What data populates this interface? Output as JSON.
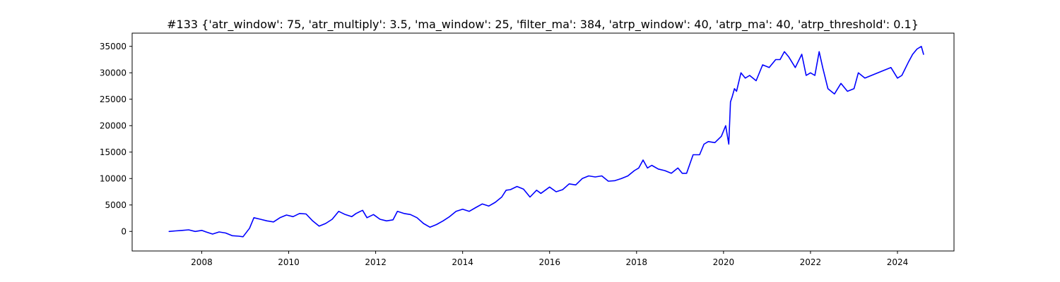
{
  "chart_data": {
    "type": "line",
    "title": "#133 {'atr_window': 75, 'atr_multiply': 3.5, 'ma_window': 25, 'filter_ma': 384, 'atrp_window': 40, 'atrp_ma': 40, 'atrp_threshold': 0.1}",
    "xlabel": "",
    "ylabel": "",
    "xlim": [
      2006.4,
      2025.3
    ],
    "ylim": [
      -3700,
      37500
    ],
    "xticks": [
      2008,
      2010,
      2012,
      2014,
      2016,
      2018,
      2020,
      2022,
      2024
    ],
    "yticks": [
      0,
      5000,
      10000,
      15000,
      20000,
      25000,
      30000,
      35000
    ],
    "grid": false,
    "legend": "none",
    "series": [
      {
        "color": "#0000ff",
        "x": [
          2007.25,
          2007.4,
          2007.55,
          2007.7,
          2007.85,
          2008.0,
          2008.1,
          2008.25,
          2008.4,
          2008.55,
          2008.7,
          2008.85,
          2008.95,
          2009.1,
          2009.2,
          2009.35,
          2009.5,
          2009.65,
          2009.8,
          2009.95,
          2010.1,
          2010.25,
          2010.4,
          2010.55,
          2010.7,
          2010.85,
          2011.0,
          2011.15,
          2011.3,
          2011.45,
          2011.55,
          2011.7,
          2011.8,
          2011.95,
          2012.1,
          2012.25,
          2012.4,
          2012.5,
          2012.65,
          2012.8,
          2012.95,
          2013.1,
          2013.25,
          2013.4,
          2013.55,
          2013.7,
          2013.85,
          2014.0,
          2014.15,
          2014.3,
          2014.45,
          2014.6,
          2014.75,
          2014.9,
          2015.0,
          2015.1,
          2015.25,
          2015.4,
          2015.55,
          2015.7,
          2015.8,
          2015.9,
          2016.0,
          2016.15,
          2016.3,
          2016.45,
          2016.6,
          2016.75,
          2016.9,
          2017.05,
          2017.2,
          2017.35,
          2017.5,
          2017.65,
          2017.8,
          2017.95,
          2018.05,
          2018.15,
          2018.25,
          2018.35,
          2018.5,
          2018.65,
          2018.8,
          2018.95,
          2019.05,
          2019.15,
          2019.3,
          2019.45,
          2019.55,
          2019.65,
          2019.8,
          2019.95,
          2020.05,
          2020.12,
          2020.16,
          2020.2,
          2020.25,
          2020.3,
          2020.4,
          2020.5,
          2020.6,
          2020.75,
          2020.9,
          2021.05,
          2021.2,
          2021.3,
          2021.4,
          2021.5,
          2021.65,
          2021.8,
          2021.9,
          2022.0,
          2022.1,
          2022.2,
          2022.28,
          2022.4,
          2022.55,
          2022.7,
          2022.85,
          2023.0,
          2023.1,
          2023.25,
          2023.4,
          2023.55,
          2023.7,
          2023.85,
          2024.0,
          2024.1,
          2024.25,
          2024.35,
          2024.45,
          2024.55,
          2024.6
        ],
        "values": [
          0,
          100,
          200,
          300,
          0,
          200,
          -100,
          -500,
          -100,
          -300,
          -800,
          -900,
          -1000,
          600,
          2600,
          2300,
          2000,
          1800,
          2600,
          3100,
          2800,
          3400,
          3300,
          2000,
          1000,
          1500,
          2300,
          3800,
          3200,
          2800,
          3400,
          4000,
          2600,
          3200,
          2300,
          2000,
          2200,
          3800,
          3400,
          3200,
          2600,
          1500,
          800,
          1300,
          2000,
          2800,
          3800,
          4200,
          3800,
          4500,
          5200,
          4800,
          5500,
          6500,
          7800,
          7900,
          8500,
          8000,
          6500,
          7800,
          7200,
          7800,
          8400,
          7500,
          7900,
          9000,
          8800,
          10000,
          10500,
          10300,
          10500,
          9500,
          9600,
          10000,
          10500,
          11500,
          12000,
          13500,
          12000,
          12500,
          11800,
          11500,
          11000,
          12000,
          11000,
          11000,
          14500,
          14500,
          16500,
          17000,
          16800,
          18000,
          20000,
          16500,
          24500,
          25500,
          27000,
          26500,
          30000,
          29000,
          29500,
          28500,
          31500,
          31000,
          32500,
          32500,
          34000,
          33000,
          31000,
          33500,
          29500,
          30000,
          29500,
          34000,
          31000,
          27000,
          26000,
          28000,
          26500,
          27000,
          30000,
          29000,
          29500,
          30000,
          30500,
          31000,
          29000,
          29500,
          32000,
          33500,
          34500,
          35000,
          33500
        ]
      }
    ]
  }
}
